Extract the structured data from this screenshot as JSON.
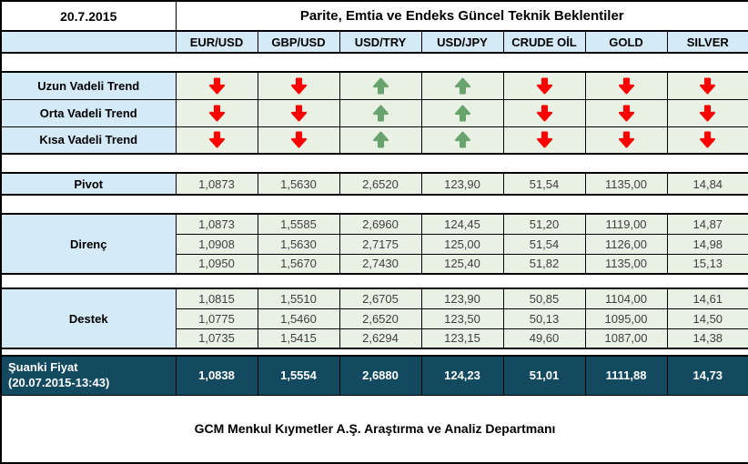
{
  "header": {
    "date": "20.7.2015",
    "title": "Parite, Emtia ve Endeks Güncel Teknik Beklentiler"
  },
  "columns": [
    "EUR/USD",
    "GBP/USD",
    "USD/TRY",
    "USD/JPY",
    "CRUDE OİL",
    "GOLD",
    "SILVER"
  ],
  "trends": {
    "rows": [
      {
        "label": "Uzun Vadeli Trend",
        "arrows": [
          "down",
          "down",
          "up",
          "up",
          "down",
          "down",
          "down"
        ]
      },
      {
        "label": "Orta Vadeli Trend",
        "arrows": [
          "down",
          "down",
          "up",
          "up",
          "down",
          "down",
          "down"
        ]
      },
      {
        "label": "Kısa Vadeli Trend",
        "arrows": [
          "down",
          "down",
          "up",
          "up",
          "down",
          "down",
          "down"
        ]
      }
    ]
  },
  "pivot": {
    "label": "Pivot",
    "values": [
      "1,0873",
      "1,5630",
      "2,6520",
      "123,90",
      "51,54",
      "1135,00",
      "14,84"
    ]
  },
  "resistance": {
    "label": "Direnç",
    "rows": [
      [
        "1,0873",
        "1,5585",
        "2,6960",
        "124,45",
        "51,20",
        "1119,00",
        "14,87"
      ],
      [
        "1,0908",
        "1,5630",
        "2,7175",
        "125,00",
        "51,54",
        "1126,00",
        "14,98"
      ],
      [
        "1,0950",
        "1,5670",
        "2,7430",
        "125,40",
        "51,82",
        "1135,00",
        "15,13"
      ]
    ]
  },
  "support": {
    "label": "Destek",
    "rows": [
      [
        "1,0815",
        "1,5510",
        "2,6705",
        "123,90",
        "50,85",
        "1104,00",
        "14,61"
      ],
      [
        "1,0775",
        "1,5460",
        "2,6520",
        "123,50",
        "50,13",
        "1095,00",
        "14,50"
      ],
      [
        "1,0735",
        "1,5415",
        "2,6294",
        "123,15",
        "49,60",
        "1087,00",
        "14,38"
      ]
    ]
  },
  "current": {
    "label_line1": "Şuanki Fiyat",
    "label_line2": "(20.07.2015-13:43)",
    "values": [
      "1,0838",
      "1,5554",
      "2,6880",
      "124,23",
      "51,01",
      "1111,88",
      "14,73"
    ]
  },
  "footer": "GCM Menkul Kıymetler A.Ş. Araştırma ve Analiz Departmanı",
  "colors": {
    "label_bg": "#d4eaf7",
    "value_bg": "#e9f1e4",
    "current_bg": "#144a60",
    "arrow_up": "#69a46e",
    "arrow_down": "#fe0000",
    "value_text": "#3f3f3f"
  }
}
